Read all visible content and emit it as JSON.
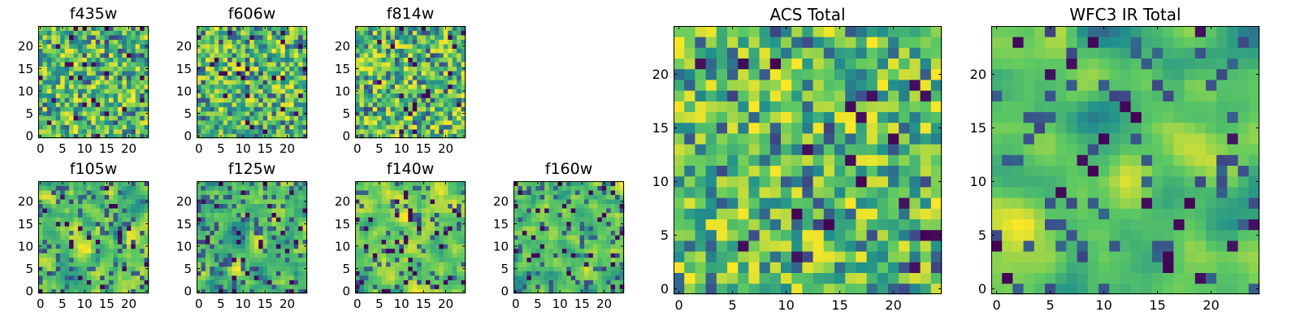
{
  "colors": {
    "colormap": [
      "#440154",
      "#3b528b",
      "#21918c",
      "#5ec962",
      "#fde725"
    ],
    "axes_frame": "#000000",
    "background": "#ffffff"
  },
  "chart_data": [
    {
      "id": "f435w",
      "type": "heatmap",
      "title": "f435w",
      "grid_size": 25,
      "colormap": "viridis",
      "seed": 11,
      "smooth": 0,
      "lowFrac": 0.035,
      "xticks": [
        0,
        5,
        10,
        15,
        20
      ],
      "yticks": [
        0,
        5,
        10,
        15,
        20
      ],
      "xlim": [
        -0.5,
        24.5
      ],
      "ylim": [
        -0.5,
        24.5
      ]
    },
    {
      "id": "f606w",
      "type": "heatmap",
      "title": "f606w",
      "grid_size": 25,
      "colormap": "viridis",
      "seed": 22,
      "smooth": 0,
      "lowFrac": 0.035,
      "xticks": [
        0,
        5,
        10,
        15,
        20
      ],
      "yticks": [
        0,
        5,
        10,
        15,
        20
      ],
      "xlim": [
        -0.5,
        24.5
      ],
      "ylim": [
        -0.5,
        24.5
      ]
    },
    {
      "id": "f814w",
      "type": "heatmap",
      "title": "f814w",
      "grid_size": 25,
      "colormap": "viridis",
      "seed": 33,
      "smooth": 0,
      "lowFrac": 0.035,
      "xticks": [
        0,
        5,
        10,
        15,
        20
      ],
      "yticks": [
        0,
        5,
        10,
        15,
        20
      ],
      "xlim": [
        -0.5,
        24.5
      ],
      "ylim": [
        -0.5,
        24.5
      ]
    },
    {
      "id": "f105w",
      "type": "heatmap",
      "title": "f105w",
      "grid_size": 25,
      "colormap": "viridis",
      "seed": 44,
      "smooth": 1,
      "lowFrac": 0.05,
      "xticks": [
        0,
        5,
        10,
        15,
        20
      ],
      "yticks": [
        0,
        5,
        10,
        15,
        20
      ],
      "xlim": [
        -0.5,
        24.5
      ],
      "ylim": [
        -0.5,
        24.5
      ]
    },
    {
      "id": "f125w",
      "type": "heatmap",
      "title": "f125w",
      "grid_size": 25,
      "colormap": "viridis",
      "seed": 55,
      "smooth": 1,
      "lowFrac": 0.05,
      "xticks": [
        0,
        5,
        10,
        15,
        20
      ],
      "yticks": [
        0,
        5,
        10,
        15,
        20
      ],
      "xlim": [
        -0.5,
        24.5
      ],
      "ylim": [
        -0.5,
        24.5
      ]
    },
    {
      "id": "f140w",
      "type": "heatmap",
      "title": "f140w",
      "grid_size": 25,
      "colormap": "viridis",
      "seed": 66,
      "smooth": 1,
      "lowFrac": 0.05,
      "xticks": [
        0,
        5,
        10,
        15,
        20
      ],
      "yticks": [
        0,
        5,
        10,
        15,
        20
      ],
      "xlim": [
        -0.5,
        24.5
      ],
      "ylim": [
        -0.5,
        24.5
      ]
    },
    {
      "id": "f160w",
      "type": "heatmap",
      "title": "f160w",
      "grid_size": 25,
      "colormap": "viridis",
      "seed": 77,
      "smooth": 1,
      "lowFrac": 0.05,
      "xticks": [
        0,
        5,
        10,
        15,
        20
      ],
      "yticks": [
        0,
        5,
        10,
        15,
        20
      ],
      "xlim": [
        -0.5,
        24.5
      ],
      "ylim": [
        -0.5,
        24.5
      ]
    },
    {
      "id": "acs-total",
      "type": "heatmap",
      "title": "ACS Total",
      "grid_size": 25,
      "colormap": "viridis",
      "seed": 88,
      "smooth": 0,
      "lowFrac": 0.03,
      "xticks": [
        0,
        5,
        10,
        15,
        20
      ],
      "yticks": [
        0,
        5,
        10,
        15,
        20
      ],
      "xlim": [
        -0.5,
        24.5
      ],
      "ylim": [
        -0.5,
        24.5
      ]
    },
    {
      "id": "wfc3-ir-total",
      "type": "heatmap",
      "title": "WFC3 IR Total",
      "grid_size": 25,
      "colormap": "viridis",
      "seed": 99,
      "smooth": 2,
      "lowFrac": 0.04,
      "xticks": [
        0,
        5,
        10,
        15,
        20
      ],
      "yticks": [
        0,
        5,
        10,
        15,
        20
      ],
      "xlim": [
        -0.5,
        24.5
      ],
      "ylim": [
        -0.5,
        24.5
      ]
    }
  ]
}
